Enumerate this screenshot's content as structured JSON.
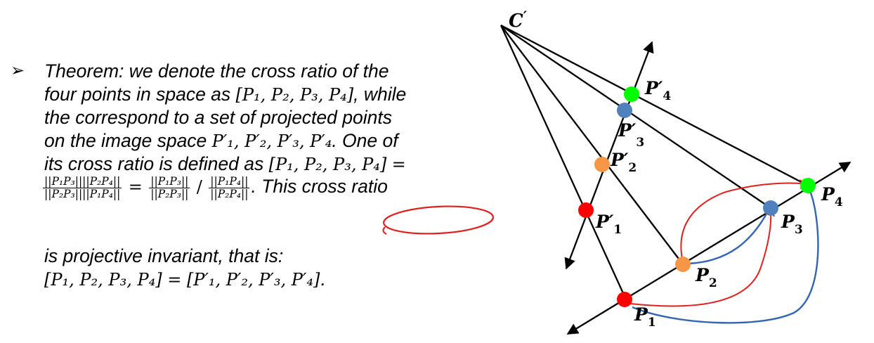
{
  "theorem": {
    "bullet": "➢",
    "line1": "Theorem: we denote the cross ratio of the",
    "line2_a": "four points in space as",
    "line2_b": ", while",
    "line3": "the correspond to a set of projected points",
    "line4_a": "on the image space",
    "line4_b": ". One of",
    "line5": "its cross ratio is defined as",
    "line6_this": ". This",
    "line6_cross_ratio": "cross ratio",
    "line7": "is projective invariant, that is:"
  },
  "math": {
    "set_p": "[P₁, P₂, P₃, P₄]",
    "image_points": "P′₁, P′₂, P′₃, P′₄",
    "equals": "=",
    "slash": "/",
    "invariance": "[P₁, P₂, P₃, P₄] = [P′₁, P′₂, P′₃, P′₄]."
  },
  "fractions": {
    "f1_num": "||P₁P₃||||P₂P₄||",
    "f1_den": "||P₂P₃||||P₁P₄||",
    "f2_num": "||P₁P₃||",
    "f2_den": "||P₂P₃||",
    "f3_num": "||P₁P₄||",
    "f3_den": "||P₂P₄||"
  },
  "diagram": {
    "center_label": "C",
    "center_prime": "′",
    "labels": {
      "p1": "P",
      "p1_sub": "1",
      "p2": "P",
      "p2_sub": "2",
      "p3": "P",
      "p3_sub": "3",
      "p4": "P",
      "p4_sub": "4",
      "pp1": "P′",
      "pp1_sub": "1",
      "pp2": "P′",
      "pp2_sub": "2",
      "pp3": "P′",
      "pp3_sub": "3",
      "pp4": "P′",
      "pp4_sub": "4"
    },
    "colors": {
      "p1": "#ff0000",
      "p2": "#f79646",
      "p3": "#4f81bd",
      "p4": "#00ff00",
      "annotation_red": "#e0201f",
      "annotation_blue": "#3465b0"
    }
  }
}
